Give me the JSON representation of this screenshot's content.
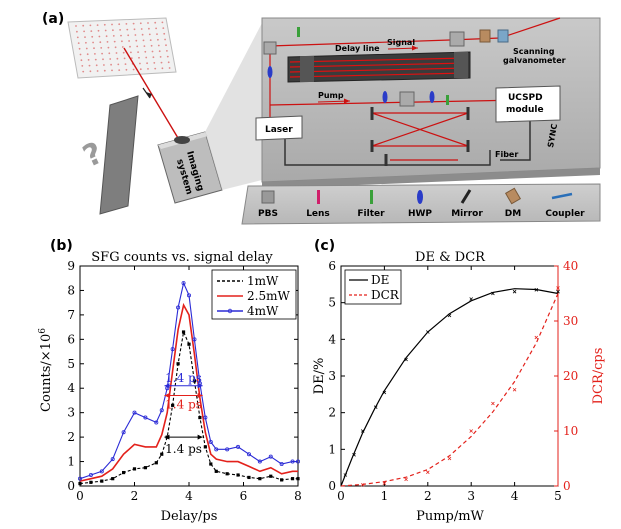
{
  "panel_a": {
    "label": "(a)",
    "box_labels": {
      "delay_line": "Delay line",
      "signal": "Signal",
      "scanning": "Scanning",
      "galvanometer": "galvanometer",
      "pump": "Pump",
      "laser": "Laser",
      "ucspd_1": "UCSPD",
      "ucspd_2": "module",
      "fiber": "Fiber",
      "sync": "SYNC",
      "imaging_1": "Imaging",
      "imaging_2": "system"
    },
    "legend": [
      "PBS",
      "Lens",
      "Filter",
      "HWP",
      "Mirror",
      "DM",
      "Coupler"
    ]
  },
  "chart_data": [
    {
      "panel": "(b)",
      "type": "line",
      "title": "SFG counts vs. signal delay",
      "xlabel": "Delay/ps",
      "ylabel": "Counts/×10",
      "ylabel_exp": "6",
      "xlim": [
        0,
        8
      ],
      "ylim": [
        0,
        9
      ],
      "xticks": [
        "0",
        "2",
        "4",
        "6",
        "8"
      ],
      "yticks": [
        "0",
        "1",
        "2",
        "3",
        "4",
        "5",
        "6",
        "7",
        "8",
        "9"
      ],
      "legend_position": "top-right",
      "series": [
        {
          "name": "1mW",
          "color": "#000000",
          "style": "dashed",
          "x": [
            0,
            0.4,
            0.8,
            1.2,
            1.6,
            2.0,
            2.4,
            2.8,
            3.0,
            3.2,
            3.4,
            3.6,
            3.8,
            4.0,
            4.2,
            4.4,
            4.6,
            4.8,
            5.0,
            5.4,
            5.8,
            6.2,
            6.6,
            7.0,
            7.4,
            7.8,
            8.0
          ],
          "y": [
            0.1,
            0.15,
            0.2,
            0.3,
            0.55,
            0.7,
            0.75,
            0.95,
            1.3,
            2.0,
            3.3,
            5.0,
            6.3,
            5.8,
            4.3,
            2.8,
            1.6,
            0.9,
            0.6,
            0.5,
            0.45,
            0.35,
            0.3,
            0.4,
            0.25,
            0.3,
            0.3
          ]
        },
        {
          "name": "2.5mW",
          "color": "#e3211b",
          "style": "solid",
          "x": [
            0,
            0.4,
            0.8,
            1.2,
            1.6,
            2.0,
            2.4,
            2.8,
            3.0,
            3.2,
            3.4,
            3.6,
            3.8,
            4.0,
            4.2,
            4.4,
            4.6,
            4.8,
            5.0,
            5.4,
            5.8,
            6.2,
            6.6,
            7.0,
            7.4,
            7.8,
            8.0
          ],
          "y": [
            0.2,
            0.3,
            0.4,
            0.7,
            1.3,
            1.7,
            1.6,
            1.6,
            2.1,
            3.0,
            4.7,
            6.4,
            7.4,
            7.0,
            5.4,
            3.6,
            2.2,
            1.3,
            1.1,
            1.0,
            1.0,
            0.8,
            0.6,
            0.75,
            0.5,
            0.6,
            0.6
          ]
        },
        {
          "name": "4mW",
          "color": "#2b2bd6",
          "style": "solid-marker",
          "x": [
            0,
            0.4,
            0.8,
            1.2,
            1.6,
            2.0,
            2.4,
            2.8,
            3.0,
            3.2,
            3.4,
            3.6,
            3.8,
            4.0,
            4.2,
            4.4,
            4.6,
            4.8,
            5.0,
            5.4,
            5.8,
            6.2,
            6.6,
            7.0,
            7.4,
            7.8,
            8.0
          ],
          "y": [
            0.3,
            0.45,
            0.6,
            1.1,
            2.2,
            3.0,
            2.8,
            2.6,
            3.1,
            4.0,
            5.6,
            7.3,
            8.3,
            7.8,
            6.0,
            4.2,
            2.8,
            1.8,
            1.5,
            1.5,
            1.6,
            1.3,
            1.0,
            1.2,
            0.9,
            1.0,
            1.0
          ]
        }
      ],
      "annotations": [
        {
          "text": "1.4 ps",
          "color": "#2b2bd6",
          "y": 4.1,
          "x_from": 3.1,
          "x_to": 4.5
        },
        {
          "text": "1.4 ps",
          "color": "#e3211b",
          "y": 3.7,
          "x_from": 3.1,
          "x_to": 4.5
        },
        {
          "text": "1.4 ps",
          "color": "#000000",
          "y": 2.0,
          "x_from": 3.1,
          "x_to": 4.5
        }
      ]
    },
    {
      "panel": "(c)",
      "type": "line",
      "title": "DE & DCR",
      "xlabel": "Pump/mW",
      "ylabel": "DE/%",
      "y2label": "DCR/cps",
      "xlim": [
        0,
        5
      ],
      "ylim": [
        0,
        6
      ],
      "y2lim": [
        0,
        40
      ],
      "xticks": [
        "0",
        "1",
        "2",
        "3",
        "4",
        "5"
      ],
      "yticks": [
        "0",
        "1",
        "2",
        "3",
        "4",
        "5",
        "6"
      ],
      "y2ticks": [
        "0",
        "10",
        "20",
        "30",
        "40"
      ],
      "legend_position": "top-left",
      "series": [
        {
          "name": "DE",
          "axis": "left",
          "color": "#000000",
          "style": "solid",
          "fit_x": [
            0,
            0.25,
            0.5,
            0.75,
            1,
            1.5,
            2,
            2.5,
            3,
            3.5,
            4,
            4.5,
            5
          ],
          "fit_y": [
            0,
            0.75,
            1.45,
            2.05,
            2.6,
            3.5,
            4.2,
            4.7,
            5.05,
            5.28,
            5.38,
            5.36,
            5.25
          ],
          "points_x": [
            0.1,
            0.3,
            0.5,
            0.8,
            1.0,
            1.5,
            2.0,
            2.5,
            3.0,
            3.5,
            4.0,
            4.5,
            5.0
          ],
          "points_y": [
            0.3,
            0.85,
            1.5,
            2.15,
            2.55,
            3.45,
            4.2,
            4.65,
            5.1,
            5.25,
            5.3,
            5.35,
            5.3
          ]
        },
        {
          "name": "DCR",
          "axis": "right",
          "color": "#e3211b",
          "style": "dashed",
          "fit_x": [
            0,
            0.5,
            1,
            1.5,
            2,
            2.5,
            3,
            3.5,
            4,
            4.5,
            5
          ],
          "fit_y": [
            0,
            0.3,
            0.8,
            1.6,
            3.0,
            5.5,
            9.0,
            13.5,
            19.0,
            26.0,
            35.0
          ],
          "points_x": [
            0.5,
            1.0,
            1.5,
            2.0,
            2.5,
            3.0,
            3.5,
            4.0,
            4.5,
            5.0
          ],
          "points_y": [
            0.2,
            0.5,
            1.2,
            2.5,
            5.0,
            10.0,
            15.0,
            17.5,
            27.0,
            36.0
          ]
        }
      ]
    }
  ]
}
